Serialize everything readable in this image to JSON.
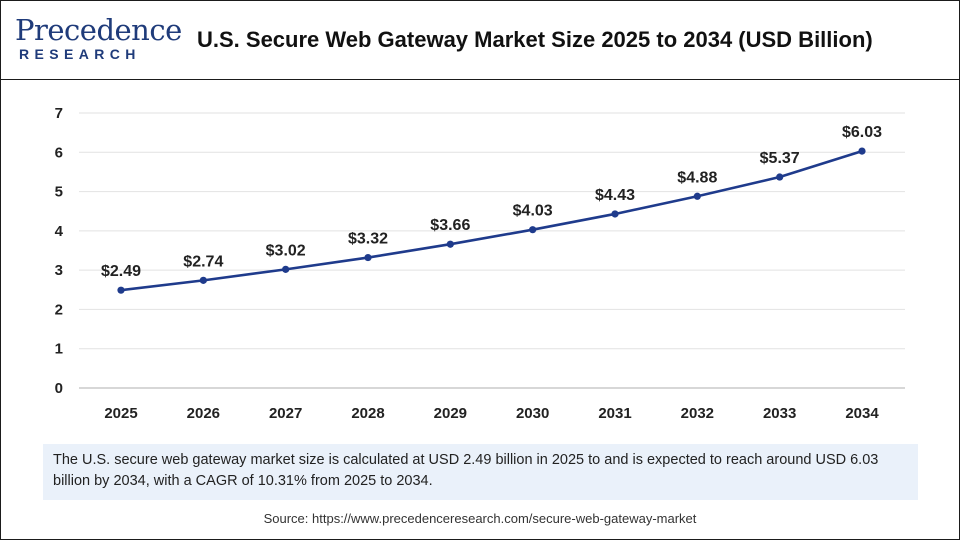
{
  "logo": {
    "line1": "Precedence",
    "line2": "RESEARCH"
  },
  "title": "U.S. Secure Web Gateway Market Size 2025 to 2034 (USD Billion)",
  "chart_data": {
    "type": "line",
    "title": "U.S. Secure Web Gateway Market Size 2025 to 2034 (USD Billion)",
    "xlabel": "",
    "ylabel": "",
    "categories": [
      "2025",
      "2026",
      "2027",
      "2028",
      "2029",
      "2030",
      "2031",
      "2032",
      "2033",
      "2034"
    ],
    "values": [
      2.49,
      2.74,
      3.02,
      3.32,
      3.66,
      4.03,
      4.43,
      4.88,
      5.37,
      6.03
    ],
    "data_labels": [
      "$2.49",
      "$2.74",
      "$3.02",
      "$3.32",
      "$3.66",
      "$4.03",
      "$4.43",
      "$4.88",
      "$5.37",
      "$6.03"
    ],
    "ylim": [
      0,
      7
    ],
    "yticks": [
      0,
      1,
      2,
      3,
      4,
      5,
      6,
      7
    ],
    "grid": true,
    "line_color": "#1f3b8c"
  },
  "description": "The U.S. secure web gateway market size is calculated at USD 2.49 billion in 2025 to and is expected to reach around USD 6.03 billion by 2034, with a CAGR of 10.31% from 2025 to 2034.",
  "source": "Source: https://www.precedenceresearch.com/secure-web-gateway-market"
}
